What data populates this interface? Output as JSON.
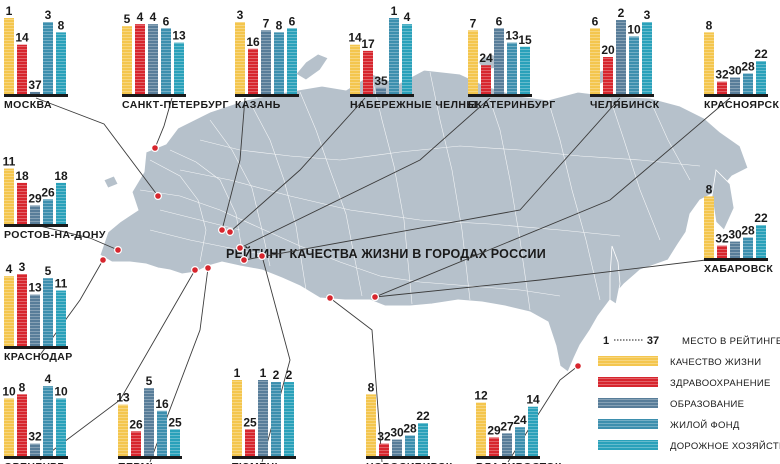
{
  "title": "РЕЙТИНГ КАЧЕСТВА ЖИЗНИ В ГОРОДАХ РОССИИ",
  "colors": {
    "quality": "#f4c64e",
    "health": "#d7262e",
    "education": "#587d99",
    "housing": "#3d8fae",
    "roads": "#2aa1ba",
    "map_fill": "#b6c1cb",
    "map_stroke": "#ffffff",
    "marker": "#d7262e",
    "leader_line": "#3c3c3c"
  },
  "legend": {
    "rank_label": "МЕСТО В РЕЙТИНГЕ",
    "rank_best": "1",
    "rank_worst": "37",
    "items": [
      {
        "key": "quality",
        "label": "КАЧЕСТВО ЖИЗНИ"
      },
      {
        "key": "health",
        "label": "ЗДРАВООХРАНЕНИЕ"
      },
      {
        "key": "education",
        "label": "ОБРАЗОВАНИЕ"
      },
      {
        "key": "housing",
        "label": "ЖИЛОЙ ФОНД"
      },
      {
        "key": "roads",
        "label": "ДОРОЖНОЕ ХОЗЯЙСТВО"
      }
    ]
  },
  "chart_data": {
    "type": "bar",
    "value_meaning": "rank (1 = best, 37 = worst)",
    "ylim": [
      1,
      37
    ],
    "categories": [
      "КАЧЕСТВО ЖИЗНИ",
      "ЗДРАВООХРАНЕНИЕ",
      "ОБРАЗОВАНИЕ",
      "ЖИЛОЙ ФОНД",
      "ДОРОЖНОЕ ХОЗЯЙСТВО"
    ],
    "cities": [
      {
        "name": "МОСКВА",
        "ranks": [
          1,
          14,
          37,
          3,
          8
        ]
      },
      {
        "name": "САНКТ-ПЕТЕРБУРГ",
        "ranks": [
          5,
          4,
          4,
          6,
          13
        ]
      },
      {
        "name": "КАЗАНЬ",
        "ranks": [
          3,
          16,
          7,
          8,
          6
        ]
      },
      {
        "name": "НАБЕРЕЖНЫЕ ЧЕЛНЫ",
        "ranks": [
          14,
          17,
          35,
          1,
          4
        ]
      },
      {
        "name": "ЕКАТЕРИНБУРГ",
        "ranks": [
          7,
          24,
          6,
          13,
          15
        ]
      },
      {
        "name": "ЧЕЛЯБИНСК",
        "ranks": [
          6,
          20,
          2,
          10,
          3
        ]
      },
      {
        "name": "КРАСНОЯРСК",
        "ranks": [
          8,
          32,
          30,
          28,
          22
        ]
      },
      {
        "name": "РОСТОВ-НА-ДОНУ",
        "ranks": [
          11,
          18,
          29,
          26,
          18
        ]
      },
      {
        "name": "ХАБАРОВСК",
        "ranks": [
          8,
          32,
          30,
          28,
          22
        ]
      },
      {
        "name": "КРАСНОДАР",
        "ranks": [
          4,
          3,
          13,
          5,
          11
        ]
      },
      {
        "name": "ОРЕНБУРГ",
        "ranks": [
          10,
          8,
          32,
          4,
          10
        ]
      },
      {
        "name": "ПЕРМЬ",
        "ranks": [
          13,
          26,
          5,
          16,
          25
        ]
      },
      {
        "name": "ТЮМЕНЬ",
        "ranks": [
          1,
          25,
          1,
          2,
          2
        ]
      },
      {
        "name": "НОВОСИБИРСК",
        "ranks": [
          8,
          32,
          30,
          28,
          22
        ]
      },
      {
        "name": "ВЛАДИВОСТОК",
        "ranks": [
          12,
          29,
          27,
          24,
          14
        ]
      }
    ]
  }
}
